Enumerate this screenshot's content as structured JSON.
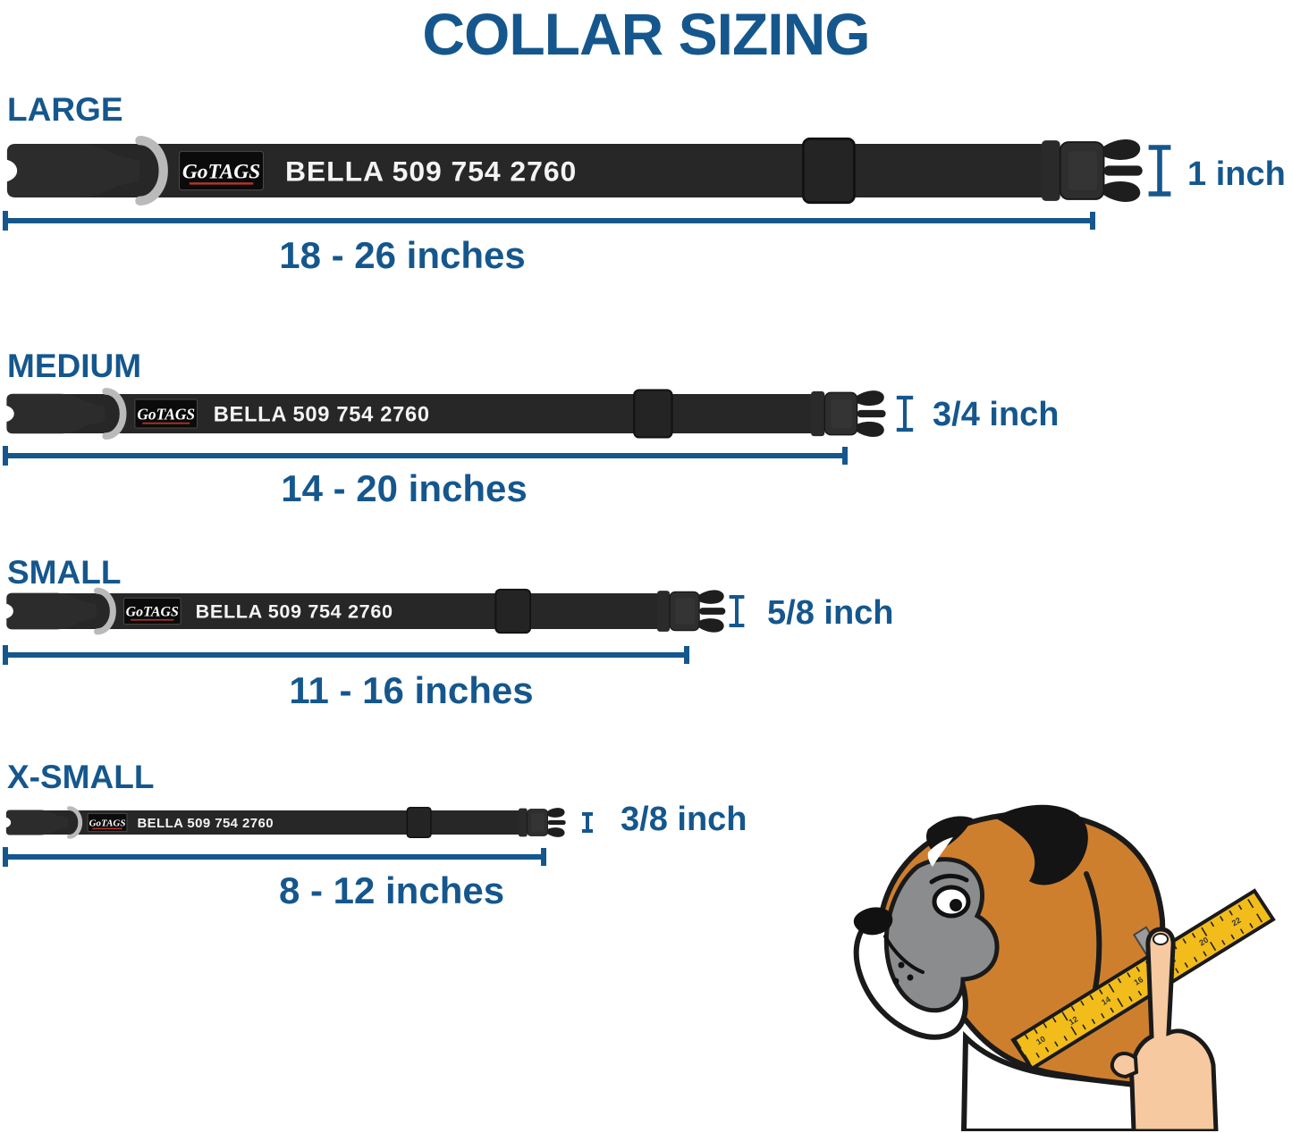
{
  "title": "COLLAR SIZING",
  "brand": "GoTAGS",
  "collar_print": "BELLA 509 754 2760",
  "sizes": [
    {
      "name": "LARGE",
      "width_label": "1 inch",
      "length_label": "18 - 26 inches"
    },
    {
      "name": "MEDIUM",
      "width_label": "3/4 inch",
      "length_label": "14 - 20 inches"
    },
    {
      "name": "SMALL",
      "width_label": "5/8 inch",
      "length_label": "11 - 16 inches"
    },
    {
      "name": "X-SMALL",
      "width_label": "3/8 inch",
      "length_label": "8 - 12 inches"
    }
  ],
  "colors": {
    "accent_blue": "#15578D",
    "collar_strap": "#272727",
    "buckle_dark": "#2c2c2c",
    "prong_dark": "#1e1e1e",
    "d_ring_gray": "#b9bab9",
    "patch_black": "#0b0b0b",
    "patch_red": "#b5342a",
    "print_white": "#f4f4f4",
    "dog_brown": "#CE7F2E",
    "dog_gray": "#8A8C8E",
    "ink_black": "#1a1a1a",
    "tape_yellow": "#F2BC1B",
    "hand_skin": "#F6C9A0"
  },
  "illustration": {
    "name": "measuring dog neck with tape",
    "tape_numbers": [
      "10",
      "12",
      "14",
      "16",
      "18",
      "20",
      "22"
    ]
  }
}
